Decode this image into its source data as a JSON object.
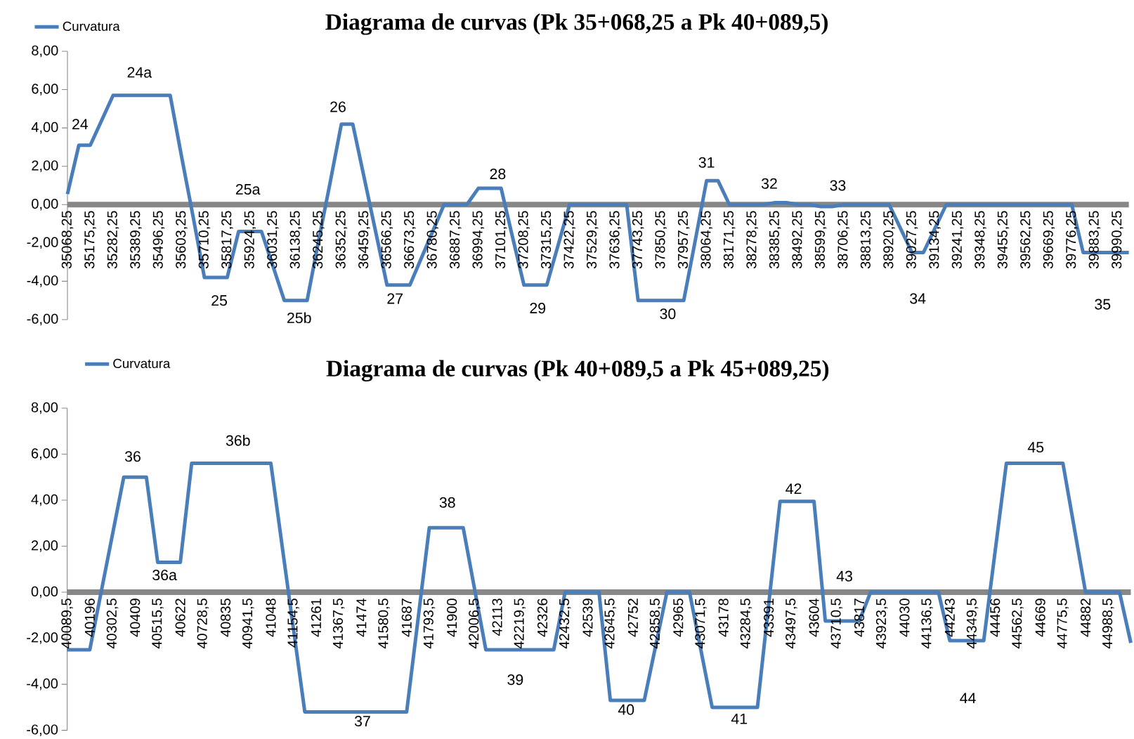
{
  "chart_data": [
    {
      "type": "line",
      "title": "Diagrama de curvas (Pk 35+068,25 a Pk 40+089,5)",
      "categories": [
        "35068,25",
        null,
        "35175,25",
        null,
        "35282,25",
        null,
        "35389,25",
        null,
        "35496,25",
        null,
        "35603,25",
        null,
        "35710,25",
        null,
        "35817,25",
        null,
        "35924,25",
        null,
        "36031,25",
        null,
        "36138,25",
        null,
        "36245,25",
        null,
        "36352,25",
        null,
        "36459,25",
        null,
        "36566,25",
        null,
        "36673,25",
        null,
        "36780,25",
        null,
        "36887,25",
        null,
        "36994,25",
        null,
        "37101,25",
        null,
        "37208,25",
        null,
        "37315,25",
        null,
        "37422,25",
        null,
        "37529,25",
        null,
        "37636,25",
        null,
        "37743,25",
        null,
        "37850,25",
        null,
        "37957,25",
        null,
        "38064,25",
        null,
        "38171,25",
        null,
        "38278,25",
        null,
        "38385,25",
        null,
        "38492,25",
        null,
        "38599,25",
        null,
        "38706,25",
        null,
        "38813,25",
        null,
        "38920,25",
        null,
        "39027,25",
        null,
        "39134,25",
        null,
        "39241,25",
        null,
        "39348,25",
        null,
        "39455,25",
        null,
        "39562,25",
        null,
        "39669,25",
        null,
        "39776,25",
        null,
        "39883,25",
        null,
        "39990,25",
        null
      ],
      "series": [
        {
          "name": "Curvatura",
          "color": "#4a7ebb",
          "values": [
            0.55,
            3.1,
            3.1,
            4.4,
            5.7,
            5.7,
            5.7,
            5.7,
            5.7,
            5.7,
            2.5,
            -0.6,
            -3.8,
            -3.8,
            -3.8,
            -1.4,
            -1.4,
            -1.4,
            -3.2,
            -5,
            -5,
            -5,
            -1.9,
            1.1,
            4.2,
            4.2,
            1.4,
            -1.4,
            -4.2,
            -4.2,
            -4.2,
            -2.8,
            -1.4,
            0,
            0,
            0,
            0.85,
            0.85,
            0.85,
            -1.7,
            -4.2,
            -4.2,
            -4.2,
            -2.1,
            0,
            0,
            0,
            0,
            0,
            0,
            -5,
            -5,
            -5,
            -5,
            -5,
            -1.9,
            1.25,
            1.25,
            0,
            0,
            0,
            0,
            0.1,
            0.1,
            0,
            0,
            -0.1,
            -0.1,
            0,
            0,
            0,
            0,
            0,
            -1.25,
            -2.5,
            -2.5,
            -1.25,
            0,
            0,
            0,
            0,
            0,
            0,
            0,
            0,
            0,
            0,
            0,
            0,
            -2.5,
            -2.5,
            -2.5,
            -2.5,
            -2.5
          ]
        }
      ],
      "ylim": [
        -6,
        8
      ],
      "yticks": [
        {
          "value": -6,
          "label": "-6,00"
        },
        {
          "value": -4,
          "label": "-4,00"
        },
        {
          "value": -2,
          "label": "-2,00"
        },
        {
          "value": 0,
          "label": "0,00"
        },
        {
          "value": 2,
          "label": "2,00"
        },
        {
          "value": 4,
          "label": "4,00"
        },
        {
          "value": 6,
          "label": "6,00"
        },
        {
          "value": 8,
          "label": "8,00"
        }
      ],
      "legend": "top left",
      "marker": "none",
      "annotations": [
        "24",
        "24a",
        "25",
        "25a",
        "25b",
        "26",
        "27",
        "28",
        "29",
        "30",
        "31",
        "32",
        "33",
        "34",
        "35"
      ]
    },
    {
      "type": "line",
      "title": "Diagrama de curvas (Pk 40+089,5 a Pk 45+089,25)",
      "categories": [
        "40089,5",
        null,
        "40196",
        null,
        "40302,5",
        null,
        "40409",
        null,
        "40515,5",
        null,
        "40622",
        null,
        "40728,5",
        null,
        "40835",
        null,
        "40941,5",
        null,
        "41048",
        null,
        "41154,5",
        null,
        "41261",
        null,
        "41367,5",
        null,
        "41474",
        null,
        "41580,5",
        null,
        "41687",
        null,
        "41793,5",
        null,
        "41900",
        null,
        "42006,5",
        null,
        "42113",
        null,
        "42219,5",
        null,
        "42326",
        null,
        "42432,5",
        null,
        "42539",
        null,
        "42645,5",
        null,
        "42752",
        null,
        "42858,5",
        null,
        "42965",
        null,
        "43071,5",
        null,
        "43178",
        null,
        "43284,5",
        null,
        "43391",
        null,
        "43497,5",
        null,
        "43604",
        null,
        "43710,5",
        null,
        "43817",
        null,
        "43923,5",
        null,
        "44030",
        null,
        "44136,5",
        null,
        "44243",
        null,
        "44349,5",
        null,
        "44456",
        null,
        "44562,5",
        null,
        "44669",
        null,
        "44775,5",
        null,
        "44882",
        null,
        "44988,5",
        null,
        null
      ],
      "series": [
        {
          "name": "Curvatura",
          "color": "#4a7ebb",
          "values": [
            -2.5,
            -2.5,
            -2.5,
            0,
            2.5,
            5,
            5,
            5,
            1.3,
            1.3,
            1.3,
            5.6,
            5.6,
            5.6,
            5.6,
            5.6,
            5.6,
            5.6,
            5.6,
            2,
            -1.6,
            -5.2,
            -5.2,
            -5.2,
            -5.2,
            -5.2,
            -5.2,
            -5.2,
            -5.2,
            -5.2,
            -5.2,
            -1.2,
            2.8,
            2.8,
            2.8,
            2.8,
            0.15,
            -2.5,
            -2.5,
            -2.5,
            -2.5,
            -2.5,
            -2.5,
            -2.5,
            0,
            0,
            0,
            0,
            -4.7,
            -4.7,
            -4.7,
            -4.7,
            -2.35,
            0,
            0,
            0,
            -2.5,
            -5,
            -5,
            -5,
            -5,
            -5,
            -0.5,
            3.95,
            3.95,
            3.95,
            3.95,
            -1.25,
            -1.25,
            -1.25,
            -1.25,
            0,
            0,
            0,
            0,
            0,
            0,
            0,
            -2.1,
            -2.1,
            -2.1,
            -2.1,
            1.75,
            5.6,
            5.6,
            5.6,
            5.6,
            5.6,
            5.6,
            2.8,
            0,
            0,
            0,
            0,
            -2.2
          ]
        }
      ],
      "ylim": [
        -6,
        8
      ],
      "yticks": [
        {
          "value": -6,
          "label": "-6,00"
        },
        {
          "value": -4,
          "label": "-4,00"
        },
        {
          "value": -2,
          "label": "-2,00"
        },
        {
          "value": 0,
          "label": "0,00"
        },
        {
          "value": 2,
          "label": "2,00"
        },
        {
          "value": 4,
          "label": "4,00"
        },
        {
          "value": 6,
          "label": "6,00"
        },
        {
          "value": 8,
          "label": "8,00"
        }
      ],
      "legend": "top left",
      "marker": "none",
      "annotations": [
        "36",
        "36a",
        "36b",
        "37",
        "38",
        "39",
        "40",
        "41",
        "42",
        "43",
        "44",
        "45"
      ]
    }
  ]
}
